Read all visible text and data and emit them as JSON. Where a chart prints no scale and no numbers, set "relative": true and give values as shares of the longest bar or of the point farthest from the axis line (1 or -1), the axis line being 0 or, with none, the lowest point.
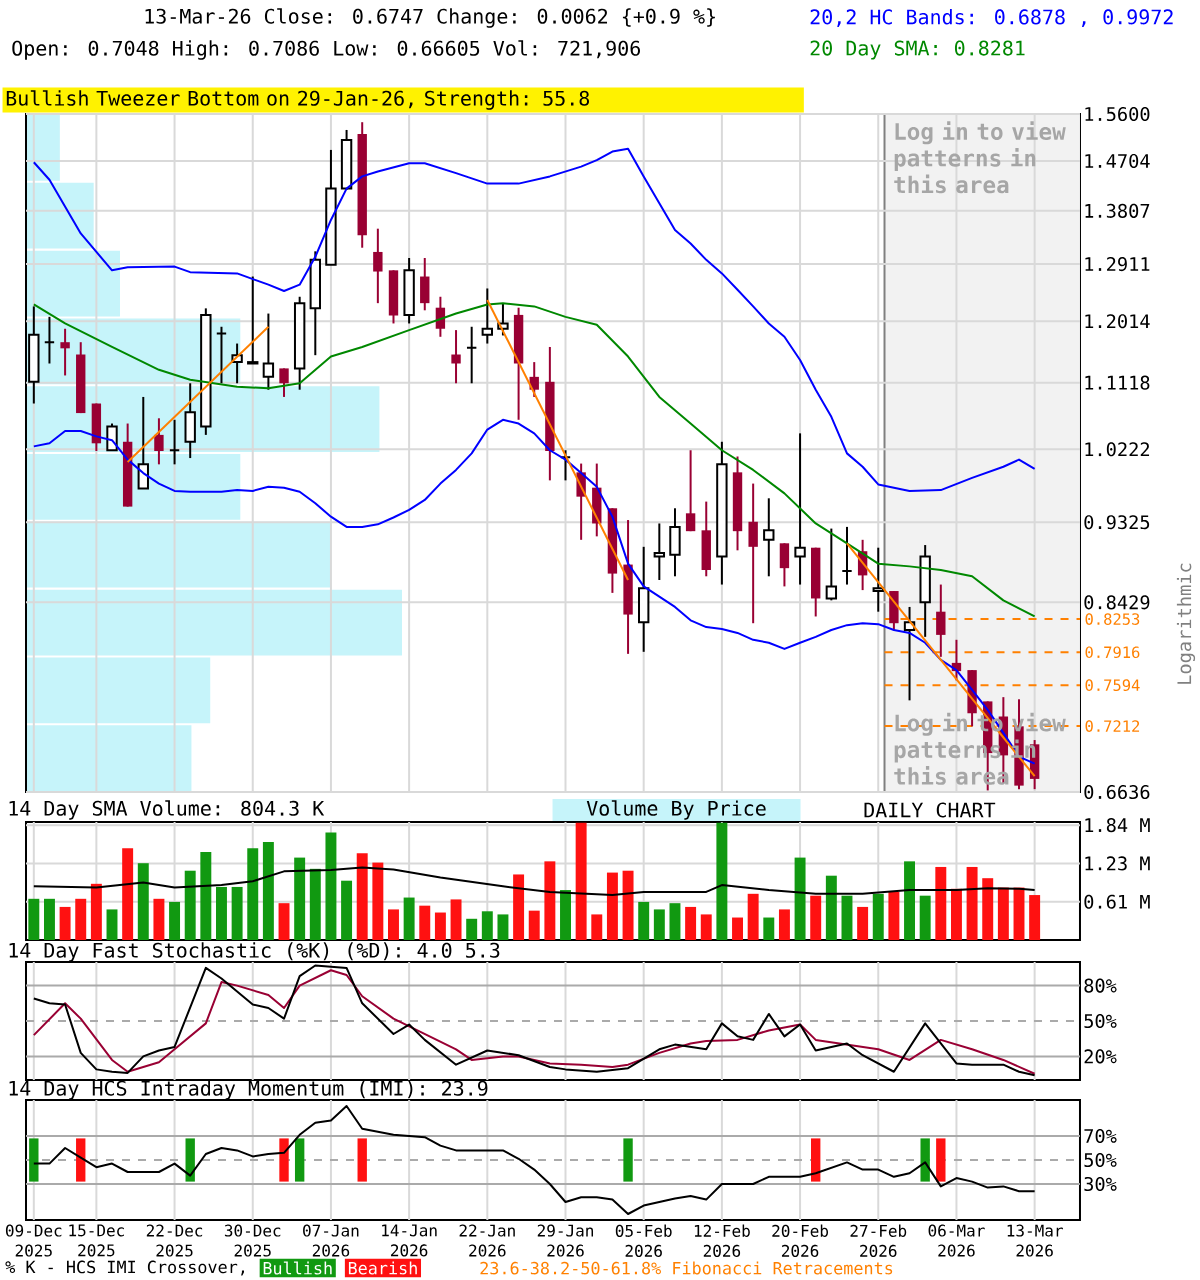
{
  "chart_data": [
    {
      "type": "candlestick",
      "title": "13-Mar-26 Close: 0.6747 Change: 0.0062 {+0.9 %}",
      "subtitle": "Open: 0.7048 High: 0.7086 Low: 0.66605 Vol: 721,906",
      "ylabel": "Logarithmic",
      "categories": [
        null,
        null,
        null,
        null,
        null,
        null,
        null,
        null,
        null,
        null,
        null,
        null,
        null,
        null,
        null,
        null,
        null,
        null,
        null,
        null,
        null,
        null,
        null,
        null,
        null,
        null,
        null,
        null,
        null,
        null,
        null,
        null,
        null,
        null,
        null,
        null,
        null,
        null,
        null,
        null,
        null,
        null,
        null,
        null,
        null,
        null,
        null,
        null,
        null,
        null,
        null,
        null,
        null,
        null,
        null,
        null,
        null,
        null,
        null,
        null,
        null,
        null,
        null,
        null,
        null
      ],
      "ohlc": [
        [
          1.113,
          1.224,
          1.083,
          1.181
        ],
        [
          1.17,
          1.208,
          1.139,
          1.17
        ],
        [
          1.17,
          1.19,
          1.122,
          1.161
        ],
        [
          1.152,
          1.17,
          1.07,
          1.07
        ],
        [
          1.083,
          1.083,
          1.02,
          1.03
        ],
        [
          1.021,
          1.056,
          1.02,
          1.052
        ],
        [
          1.032,
          1.056,
          0.951,
          0.951
        ],
        [
          0.973,
          1.092,
          0.973,
          1.003
        ],
        [
          1.041,
          1.063,
          1.003,
          1.02
        ],
        [
          1.021,
          1.061,
          1.003,
          1.021
        ],
        [
          1.032,
          1.111,
          1.011,
          1.071
        ],
        [
          1.052,
          1.221,
          1.041,
          1.211
        ],
        [
          1.183,
          1.193,
          1.111,
          1.183
        ],
        [
          1.141,
          1.168,
          1.111,
          1.151
        ],
        [
          1.139,
          1.271,
          1.139,
          1.141
        ],
        [
          1.12,
          1.213,
          1.102,
          1.139
        ],
        [
          1.132,
          1.132,
          1.092,
          1.111
        ],
        [
          1.132,
          1.239,
          1.102,
          1.229
        ],
        [
          1.221,
          1.312,
          1.151,
          1.298
        ],
        [
          1.29,
          1.491,
          1.29,
          1.42
        ],
        [
          1.42,
          1.529,
          1.418,
          1.51
        ],
        [
          1.521,
          1.544,
          1.318,
          1.339
        ],
        [
          1.311,
          1.35,
          1.229,
          1.279
        ],
        [
          1.281,
          1.281,
          1.198,
          1.21
        ],
        [
          1.211,
          1.301,
          1.198,
          1.281
        ],
        [
          1.271,
          1.301,
          1.218,
          1.229
        ],
        [
          1.222,
          1.239,
          1.178,
          1.19
        ],
        [
          1.152,
          1.188,
          1.111,
          1.139
        ],
        [
          1.162,
          1.193,
          1.111,
          1.162
        ],
        [
          1.181,
          1.252,
          1.168,
          1.19
        ],
        [
          1.19,
          1.229,
          1.18,
          1.198
        ],
        [
          1.211,
          1.222,
          1.061,
          1.139
        ],
        [
          1.12,
          1.141,
          1.092,
          1.102
        ],
        [
          1.113,
          1.163,
          0.983,
          1.02
        ],
        [
          1.012,
          1.021,
          0.983,
          1.012
        ],
        [
          0.993,
          1.004,
          0.912,
          0.963
        ],
        [
          0.974,
          1.004,
          0.916,
          0.931
        ],
        [
          0.949,
          0.949,
          0.853,
          0.874
        ],
        [
          0.884,
          0.935,
          0.79,
          0.83
        ],
        [
          0.822,
          0.904,
          0.792,
          0.858
        ],
        [
          0.893,
          0.931,
          0.867,
          0.897
        ],
        [
          0.895,
          0.949,
          0.871,
          0.927
        ],
        [
          0.943,
          1.021,
          0.922,
          0.922
        ],
        [
          0.923,
          0.957,
          0.871,
          0.878
        ],
        [
          0.893,
          1.032,
          0.862,
          1.003
        ],
        [
          0.993,
          1.013,
          0.9,
          0.922
        ],
        [
          0.933,
          0.979,
          0.821,
          0.904
        ],
        [
          0.912,
          0.961,
          0.871,
          0.923
        ],
        [
          0.908,
          0.908,
          0.86,
          0.88
        ],
        [
          0.893,
          1.043,
          0.862,
          0.903
        ],
        [
          0.903,
          0.903,
          0.828,
          0.847
        ],
        [
          0.847,
          0.925,
          0.845,
          0.86
        ],
        [
          0.877,
          0.927,
          0.862,
          0.877
        ],
        [
          0.899,
          0.912,
          0.856,
          0.872
        ],
        [
          0.855,
          0.903,
          0.833,
          0.858
        ],
        [
          0.855,
          0.855,
          0.814,
          0.821
        ],
        [
          0.814,
          0.838,
          0.745,
          0.822
        ],
        [
          0.843,
          0.906,
          0.807,
          0.893
        ],
        [
          0.833,
          0.862,
          0.787,
          0.809
        ],
        [
          0.781,
          0.804,
          0.764,
          0.773
        ],
        [
          0.774,
          0.774,
          0.721,
          0.733
        ],
        [
          0.744,
          0.744,
          0.665,
          0.697
        ],
        [
          0.73,
          0.748,
          0.671,
          0.695
        ],
        [
          0.721,
          0.746,
          0.666,
          0.669
        ],
        [
          0.7048,
          0.7086,
          0.66605,
          0.6747
        ]
      ],
      "colors": [
        "#ffffff",
        "#000000",
        "#990033",
        "#990033",
        "#990033",
        "#ffffff",
        "#990033",
        "#ffffff",
        "#990033",
        "#000000",
        "#ffffff",
        "#ffffff",
        "#000000",
        "#ffffff",
        "#ffffff",
        "#ffffff",
        "#990033",
        "#ffffff",
        "#ffffff",
        "#ffffff",
        "#ffffff",
        "#990033",
        "#990033",
        "#990033",
        "#ffffff",
        "#990033",
        "#990033",
        "#990033",
        "#000000",
        "#ffffff",
        "#ffffff",
        "#990033",
        "#990033",
        "#990033",
        "#000000",
        "#990033",
        "#990033",
        "#990033",
        "#990033",
        "#ffffff",
        "#ffffff",
        "#ffffff",
        "#990033",
        "#990033",
        "#ffffff",
        "#990033",
        "#990033",
        "#ffffff",
        "#990033",
        "#ffffff",
        "#990033",
        "#ffffff",
        "#000000",
        "#990033",
        "#ffffff",
        "#990033",
        "#ffffff",
        "#ffffff",
        "#990033",
        "#990033",
        "#990033",
        "#990033",
        "#990033",
        "#990033",
        "#990033"
      ],
      "series": [
        {
          "type": "line",
          "name": "20,2 HC Bands: 0.6878 , 0.9972",
          "color": "#0000ff",
          "values": [
            1.468,
            1.436,
            null,
            1.342,
            null,
            1.281,
            1.286,
            null,
            null,
            1.287,
            1.278,
            null,
            null,
            1.276,
            null,
            1.258,
            1.248,
            1.258,
            1.303,
            1.365,
            1.42,
            1.442,
            1.451,
            null,
            1.466,
            1.466,
            null,
            1.448,
            null,
            1.429,
            null,
            1.429,
            null,
            1.442,
            null,
            1.46,
            1.472,
            1.488,
            1.493,
            1.442,
            1.394,
            1.348,
            1.325,
            1.298,
            1.276,
            1.25,
            1.224,
            1.198,
            1.178,
            1.144,
            1.102,
            1.065,
            1.017,
            1.0,
            0.978,
            null,
            0.97,
            null,
            0.971,
            null,
            0.986,
            null,
            1.0,
            1.009,
            0.9972
          ]
        },
        {
          "type": "line",
          "color": "#0000ff",
          "values": [
            1.026,
            1.03,
            1.046,
            1.046,
            1.039,
            1.034,
            1.009,
            0.992,
            0.979,
            0.97,
            0.969,
            0.969,
            0.969,
            0.971,
            0.97,
            0.975,
            0.974,
            0.969,
            0.955,
            0.939,
            0.927,
            0.927,
            0.93,
            0.938,
            0.947,
            0.959,
            0.979,
            0.996,
            1.017,
            1.048,
            1.061,
            1.056,
            1.043,
            1.021,
            1.009,
            0.992,
            0.975,
            0.939,
            0.885,
            0.86,
            0.849,
            0.838,
            0.824,
            0.817,
            0.815,
            0.811,
            0.804,
            0.801,
            0.795,
            0.801,
            0.807,
            0.814,
            0.819,
            0.821,
            0.82,
            0.814,
            0.811,
            0.801,
            0.784,
            0.774,
            0.755,
            0.736,
            0.715,
            0.694,
            0.6878
          ]
        },
        {
          "type": "line",
          "name": "20 Day SMA: 0.8281",
          "color": "#008800",
          "values": [
            1.227,
            null,
            1.198,
            null,
            null,
            1.163,
            null,
            null,
            1.13,
            null,
            1.116,
            null,
            null,
            1.106,
            null,
            1.104,
            null,
            1.111,
            null,
            1.149,
            null,
            1.163,
            null,
            null,
            1.188,
            null,
            null,
            1.213,
            null,
            1.227,
            1.229,
            null,
            1.224,
            null,
            1.208,
            null,
            1.196,
            null,
            1.149,
            null,
            1.092,
            null,
            1.056,
            null,
            1.021,
            null,
            0.996,
            null,
            0.967,
            null,
            0.931,
            null,
            0.908,
            null,
            0.885,
            null,
            0.882,
            null,
            0.878,
            null,
            0.871,
            null,
            0.845,
            null,
            0.8281
          ]
        },
        {
          "type": "line",
          "color": "#ff8000",
          "values": [
            null,
            null,
            null,
            null,
            null,
            null,
            1.006,
            null,
            null,
            null,
            null,
            null,
            null,
            null,
            null,
            1.193,
            null,
            null,
            null,
            null,
            null,
            null,
            null,
            null,
            null,
            null,
            null,
            null,
            null,
            null,
            null,
            null,
            null,
            null,
            null,
            null,
            null,
            null,
            null,
            null,
            null,
            null,
            null,
            null,
            null,
            null,
            null,
            null,
            null,
            null,
            null,
            null,
            null,
            null,
            null,
            null,
            null,
            null,
            null,
            null,
            null,
            null,
            null,
            null,
            null
          ]
        },
        {
          "type": "line",
          "color": "#ff8000",
          "values": [
            null,
            null,
            null,
            null,
            null,
            null,
            null,
            null,
            null,
            null,
            null,
            null,
            null,
            null,
            null,
            null,
            null,
            null,
            null,
            null,
            null,
            null,
            null,
            null,
            null,
            null,
            null,
            null,
            null,
            1.234,
            null,
            null,
            null,
            null,
            null,
            null,
            null,
            null,
            0.867,
            null,
            null,
            null,
            null,
            null,
            null,
            null,
            null,
            null,
            null,
            null,
            null,
            null,
            null,
            null,
            null,
            null,
            null,
            null,
            null,
            null,
            null,
            null,
            null,
            null,
            null
          ]
        },
        {
          "type": "line",
          "color": "#ff8000",
          "values": [
            null,
            null,
            null,
            null,
            null,
            null,
            null,
            null,
            null,
            null,
            null,
            null,
            null,
            null,
            null,
            null,
            null,
            null,
            null,
            null,
            null,
            null,
            null,
            null,
            null,
            null,
            null,
            null,
            null,
            null,
            null,
            null,
            null,
            null,
            null,
            null,
            null,
            null,
            null,
            null,
            null,
            null,
            null,
            null,
            null,
            null,
            null,
            null,
            null,
            null,
            null,
            null,
            0.908,
            null,
            null,
            null,
            null,
            null,
            null,
            null,
            null,
            null,
            null,
            null,
            0.677
          ]
        }
      ],
      "ylim": [
        0.6636,
        1.56
      ],
      "log": true,
      "yticks": [
        0.6636,
        0.8429,
        0.9325,
        1.0222,
        1.1118,
        1.2014,
        1.2911,
        1.3807,
        1.4704,
        {
          "value": 1.56,
          "label": "1.5600"
        }
      ],
      "grid": true,
      "legend": "top right",
      "tick_labels": "y",
      "ref_lines": [
        {
          "axis": "y",
          "value": 0.8253,
          "label": "0.8253",
          "color": "#ff8000",
          "line_style": "dashed"
        },
        {
          "axis": "y",
          "value": 0.7916,
          "label": "0.7916",
          "color": "#ff8000",
          "line_style": "dashed"
        },
        {
          "axis": "y",
          "value": 0.7594,
          "label": "0.7594",
          "color": "#ff8000",
          "line_style": "dashed"
        },
        {
          "axis": "y",
          "value": 0.7212,
          "label": "0.7212",
          "color": "#ff8000",
          "line_style": "dashed"
        }
      ],
      "annotations": [
        "Bullish Tweezer Bottom on 29-Jan-26, Strength: 55.8",
        "DAILY CHART",
        "Log in to view patterns in this area",
        "Log in to view patterns in this area",
        "23.6-38.2-50-61.8% Fibonacci Retracements"
      ]
    },
    {
      "type": "bar",
      "orientation": "horizontal",
      "relative": true,
      "categories": [
        null,
        null,
        null,
        null,
        null,
        null,
        null,
        null,
        null,
        null
      ],
      "series": [
        {
          "name": "Volume By Price",
          "color": "#c6f4fa",
          "values": [
            0.09,
            0.18,
            0.25,
            0.57,
            0.94,
            0.57,
            0.81,
            1,
            0.49,
            0.44
          ]
        }
      ],
      "legend": "bottom",
      "tick_labels": false
    },
    {
      "type": "bar",
      "title": "14 Day SMA Volume: 804.3 K",
      "categories": [
        null,
        null,
        null,
        null,
        null,
        null,
        null,
        null,
        null,
        null,
        null,
        null,
        null,
        null,
        null,
        null,
        null,
        null,
        null,
        null,
        null,
        null,
        null,
        null,
        null,
        null,
        null,
        null,
        null,
        null,
        null,
        null,
        null,
        null,
        null,
        null,
        null,
        null,
        null,
        null,
        null,
        null,
        null,
        null,
        null,
        null,
        null,
        null,
        null,
        null,
        null,
        null,
        null,
        null,
        null,
        null,
        null,
        null,
        null,
        null,
        null,
        null,
        null,
        null,
        null
      ],
      "series": [
        {
          "type": "bar",
          "values": [
            0.66,
            0.66,
            0.53,
            0.66,
            0.9,
            0.49,
            1.47,
            1.23,
            0.66,
            0.61,
            1.11,
            1.41,
            0.85,
            0.85,
            1.47,
            1.57,
            0.59,
            1.32,
            1.14,
            1.72,
            0.95,
            1.39,
            1.24,
            0.49,
            0.68,
            0.55,
            0.44,
            0.65,
            0.34,
            0.46,
            0.41,
            1.05,
            0.47,
            1.26,
            0.8,
            1.88,
            0.41,
            1.08,
            1.11,
            0.61,
            0.49,
            0.59,
            0.53,
            0.41,
            1.88,
            0.36,
            0.74,
            0.36,
            0.49,
            1.32,
            0.71,
            1.03,
            0.71,
            0.53,
            0.74,
            0.77,
            1.26,
            0.71,
            1.17,
            0.82,
            1.17,
            0.99,
            0.84,
            0.84,
            0.72
          ],
          "colors": [
            "#119911",
            "#119911",
            "#ff1111",
            "#ff1111",
            "#ff1111",
            "#119911",
            "#ff1111",
            "#119911",
            "#ff1111",
            "#119911",
            "#119911",
            "#119911",
            "#119911",
            "#119911",
            "#119911",
            "#119911",
            "#ff1111",
            "#119911",
            "#119911",
            "#119911",
            "#119911",
            "#ff1111",
            "#ff1111",
            "#ff1111",
            "#119911",
            "#ff1111",
            "#ff1111",
            "#ff1111",
            "#119911",
            "#119911",
            "#119911",
            "#ff1111",
            "#ff1111",
            "#ff1111",
            "#119911",
            "#ff1111",
            "#ff1111",
            "#ff1111",
            "#ff1111",
            "#119911",
            "#119911",
            "#119911",
            "#ff1111",
            "#ff1111",
            "#119911",
            "#ff1111",
            "#ff1111",
            "#119911",
            "#ff1111",
            "#119911",
            "#ff1111",
            "#119911",
            "#119911",
            "#ff1111",
            "#119911",
            "#ff1111",
            "#119911",
            "#119911",
            "#ff1111",
            "#ff1111",
            "#ff1111",
            "#ff1111",
            "#ff1111",
            "#ff1111",
            "#ff1111"
          ]
        },
        {
          "type": "line",
          "color": "#000000",
          "values": [
            0.86,
            null,
            null,
            null,
            0.84,
            null,
            null,
            0.92,
            null,
            0.84,
            null,
            null,
            0.88,
            null,
            0.94,
            null,
            1.1,
            null,
            null,
            1.12,
            null,
            1.16,
            null,
            1.13,
            null,
            null,
            1.0,
            null,
            null,
            null,
            0.86,
            null,
            null,
            0.77,
            null,
            null,
            null,
            0.72,
            null,
            0.77,
            null,
            null,
            null,
            0.77,
            0.88,
            null,
            null,
            0.8,
            null,
            null,
            0.74,
            null,
            null,
            0.74,
            null,
            null,
            0.8,
            null,
            null,
            0.8,
            null,
            0.83,
            null,
            0.82,
            0.8
          ]
        }
      ],
      "ylim": [
        0,
        1.89
      ],
      "yticks": [
        {
          "value": 0.613,
          "label": "0.61 M"
        },
        {
          "value": 1.227,
          "label": "1.23 M"
        },
        {
          "value": 1.84,
          "label": "1.84 M"
        }
      ],
      "grid": true,
      "tick_labels": "y"
    },
    {
      "type": "line",
      "title": "14 Day Fast Stochastic (%K) (%D): 4.0 5.3",
      "categories": [
        null,
        null,
        null,
        null,
        null,
        null,
        null,
        null,
        null,
        null,
        null,
        null,
        null,
        null,
        null,
        null,
        null,
        null,
        null,
        null,
        null,
        null,
        null,
        null,
        null,
        null,
        null,
        null,
        null,
        null,
        null,
        null,
        null,
        null,
        null,
        null,
        null,
        null,
        null,
        null,
        null,
        null,
        null,
        null,
        null,
        null,
        null,
        null,
        null,
        null,
        null,
        null,
        null,
        null,
        null,
        null,
        null,
        null,
        null,
        null,
        null,
        null,
        null,
        null,
        null
      ],
      "series": [
        {
          "color": "#990033",
          "values": [
            38,
            null,
            65,
            52,
            null,
            17,
            7,
            null,
            15,
            26,
            null,
            48,
            83,
            80,
            null,
            72,
            61,
            80,
            null,
            93,
            89,
            71,
            null,
            52,
            null,
            39,
            null,
            26,
            17,
            null,
            20,
            20,
            null,
            14,
            null,
            13,
            null,
            11,
            13,
            null,
            23,
            null,
            31,
            33,
            null,
            34,
            null,
            42,
            null,
            47,
            34,
            null,
            30,
            null,
            26,
            null,
            17,
            null,
            34,
            null,
            26,
            null,
            17,
            null,
            5.3
          ]
        },
        {
          "color": "#000000",
          "values": [
            69,
            65,
            64,
            23,
            9,
            7,
            6,
            20,
            25,
            28,
            null,
            95,
            86,
            null,
            64,
            61,
            52,
            88,
            97,
            null,
            95,
            65,
            null,
            39,
            47,
            34,
            null,
            13,
            null,
            25,
            null,
            21,
            null,
            11,
            9,
            null,
            7,
            null,
            10,
            null,
            26,
            30,
            null,
            26,
            48,
            37,
            34,
            56,
            37,
            47,
            25,
            null,
            31,
            21,
            null,
            7,
            null,
            48,
            null,
            14,
            13,
            null,
            13,
            7,
            4.0
          ]
        }
      ],
      "ylim": [
        0,
        100
      ],
      "yticks": [
        {
          "value": 20,
          "label": "20%"
        },
        {
          "value": 50,
          "label": "50%"
        },
        {
          "value": 80,
          "label": "80%"
        }
      ],
      "grid": "x",
      "tick_labels": "y",
      "ref_lines": [
        {
          "axis": "y",
          "value": 80,
          "color": "#aaaaaa",
          "line_style": "solid"
        },
        {
          "axis": "y",
          "value": 50,
          "color": "#aaaaaa",
          "line_style": "dashed"
        },
        {
          "axis": "y",
          "value": 20,
          "color": "#aaaaaa",
          "line_style": "solid"
        }
      ]
    },
    {
      "type": "line",
      "title": "14 Day HCS Intraday Momentum (IMI): 23.9",
      "categories": [
        "09-Dec 2025",
        null,
        null,
        null,
        "15-Dec 2025",
        null,
        null,
        null,
        null,
        "22-Dec 2025",
        null,
        null,
        null,
        null,
        "30-Dec 2025",
        null,
        null,
        null,
        null,
        "07-Jan 2026",
        null,
        null,
        null,
        null,
        "14-Jan 2026",
        null,
        null,
        null,
        null,
        "22-Jan 2026",
        null,
        null,
        null,
        null,
        "29-Jan 2026",
        null,
        null,
        null,
        null,
        "05-Feb 2026",
        null,
        null,
        null,
        null,
        "12-Feb 2026",
        null,
        null,
        null,
        null,
        "20-Feb 2026",
        null,
        null,
        null,
        null,
        "27-Feb 2026",
        null,
        null,
        null,
        null,
        "06-Mar 2026",
        null,
        null,
        null,
        null,
        "13-Mar 2026"
      ],
      "series": [
        {
          "type": "bar",
          "name": "Bullish",
          "color": "#119911",
          "base": [
            32,
            null,
            null,
            null,
            null,
            null,
            null,
            null,
            null,
            null,
            32,
            null,
            null,
            null,
            null,
            null,
            null,
            32,
            null,
            null,
            null,
            null,
            null,
            null,
            null,
            null,
            null,
            null,
            null,
            null,
            null,
            null,
            null,
            null,
            null,
            null,
            null,
            null,
            32,
            null,
            null,
            null,
            null,
            null,
            null,
            null,
            null,
            null,
            null,
            null,
            null,
            null,
            null,
            null,
            null,
            null,
            null,
            32,
            null,
            null,
            null,
            null,
            null,
            null,
            null
          ],
          "values": [
            36,
            null,
            null,
            null,
            null,
            null,
            null,
            null,
            null,
            null,
            36,
            null,
            null,
            null,
            null,
            null,
            null,
            36,
            null,
            null,
            null,
            null,
            null,
            null,
            null,
            null,
            null,
            null,
            null,
            null,
            null,
            null,
            null,
            null,
            null,
            null,
            null,
            null,
            36,
            null,
            null,
            null,
            null,
            null,
            null,
            null,
            null,
            null,
            null,
            null,
            null,
            null,
            null,
            null,
            null,
            null,
            null,
            36,
            null,
            null,
            null,
            null,
            null,
            null,
            null
          ]
        },
        {
          "type": "bar",
          "name": "Bearish",
          "color": "#ff1111",
          "base": [
            null,
            null,
            null,
            32,
            null,
            null,
            null,
            null,
            null,
            null,
            null,
            null,
            null,
            null,
            null,
            null,
            32,
            null,
            null,
            null,
            null,
            32,
            null,
            null,
            null,
            null,
            null,
            null,
            null,
            null,
            null,
            null,
            null,
            null,
            null,
            null,
            null,
            null,
            null,
            null,
            null,
            null,
            null,
            null,
            null,
            null,
            null,
            null,
            null,
            null,
            32,
            null,
            null,
            null,
            null,
            null,
            null,
            null,
            32,
            null,
            null,
            null,
            null,
            null,
            null
          ],
          "values": [
            null,
            null,
            null,
            36,
            null,
            null,
            null,
            null,
            null,
            null,
            null,
            null,
            null,
            null,
            null,
            null,
            36,
            null,
            null,
            null,
            null,
            36,
            null,
            null,
            null,
            null,
            null,
            null,
            null,
            null,
            null,
            null,
            null,
            null,
            null,
            null,
            null,
            null,
            null,
            null,
            null,
            null,
            null,
            null,
            null,
            null,
            null,
            null,
            null,
            null,
            36,
            null,
            null,
            null,
            null,
            null,
            null,
            null,
            36,
            null,
            null,
            null,
            null,
            null,
            null
          ]
        },
        {
          "color": "#000000",
          "values": [
            47,
            47,
            60,
            52,
            44,
            47,
            40,
            null,
            40,
            47,
            37,
            55,
            60,
            58,
            53,
            55,
            56,
            71,
            81,
            83,
            95,
            76,
            null,
            71,
            null,
            69,
            62,
            58,
            null,
            null,
            58,
            51,
            42,
            30,
            15,
            19,
            19,
            17,
            5,
            12,
            null,
            18,
            20,
            17,
            30,
            null,
            30,
            36,
            null,
            36,
            39,
            null,
            48,
            42,
            42,
            36,
            39,
            48,
            28,
            35,
            32,
            27,
            28,
            24,
            23.9
          ]
        }
      ],
      "ylim": [
        0,
        100
      ],
      "yticks": [
        {
          "value": 30,
          "label": "30%"
        },
        {
          "value": 50,
          "label": "50%"
        },
        {
          "value": 70,
          "label": "70%"
        }
      ],
      "grid": "x",
      "legend": "bottom",
      "legend_title": "% K - HCS IMI Crossover,",
      "ref_lines": [
        {
          "axis": "y",
          "value": 70,
          "color": "#aaaaaa",
          "line_style": "solid"
        },
        {
          "axis": "y",
          "value": 50,
          "color": "#aaaaaa",
          "line_style": "dashed"
        },
        {
          "axis": "y",
          "value": 30,
          "color": "#aaaaaa",
          "line_style": "solid"
        }
      ]
    }
  ]
}
